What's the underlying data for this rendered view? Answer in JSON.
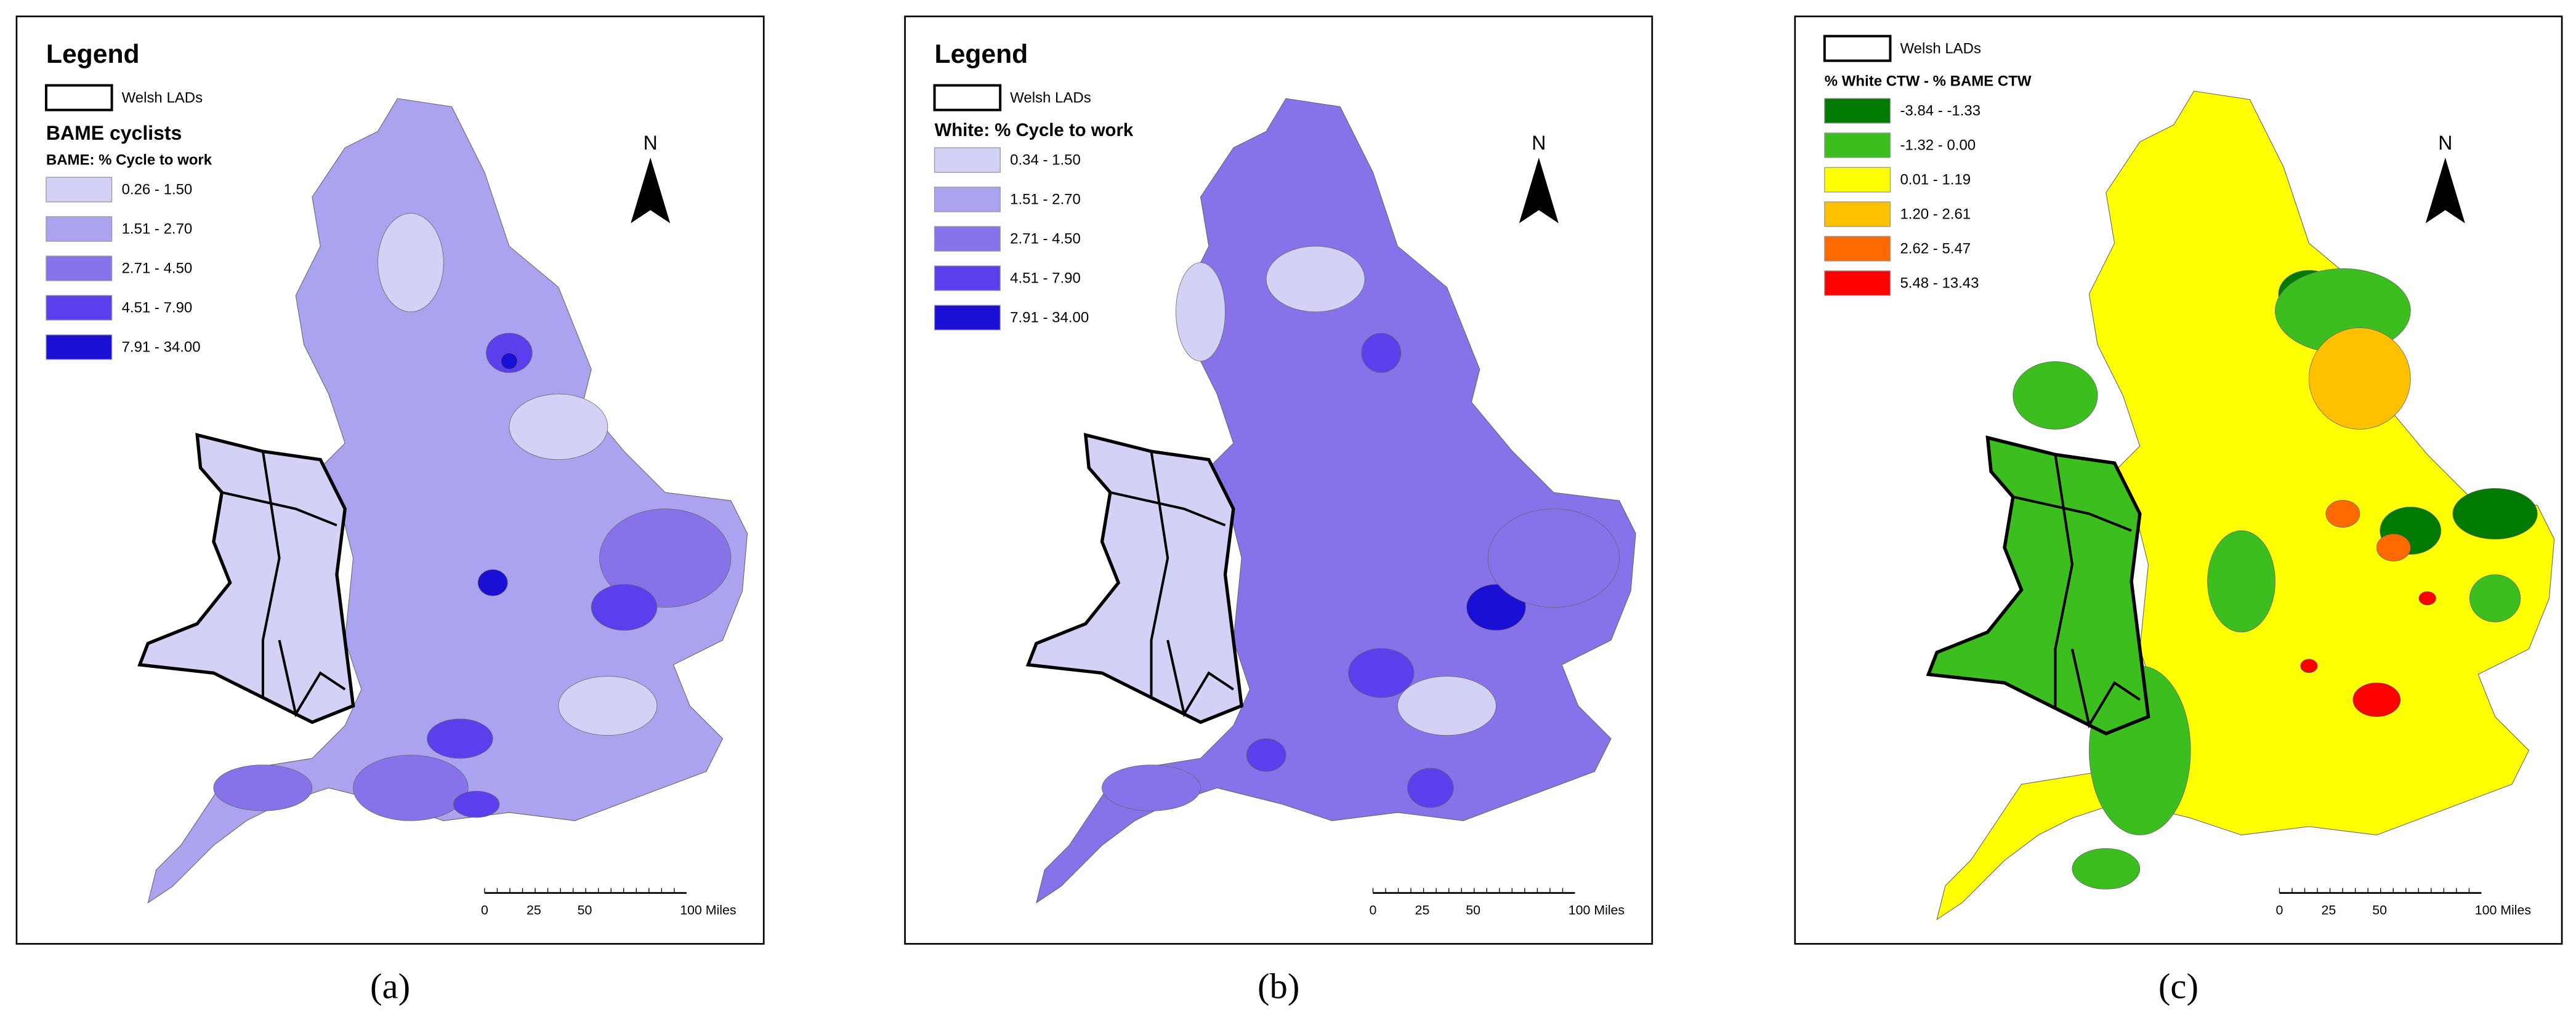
{
  "panels": [
    {
      "legend_title": "Legend",
      "boundary_label": "Welsh LADs",
      "class_title": "BAME cyclists",
      "subtitle": "BAME: % Cycle to work",
      "classes": [
        {
          "label": "0.26 - 1.50",
          "color": "#d3d2f6"
        },
        {
          "label": "1.51 - 2.70",
          "color": "#aba3f0"
        },
        {
          "label": "2.71 - 4.50",
          "color": "#8872ea"
        },
        {
          "label": "4.51 - 7.90",
          "color": "#5b3fec"
        },
        {
          "label": "7.91 - 34.00",
          "color": "#1a0fd4"
        }
      ],
      "north": "N",
      "scale_labels": [
        "0",
        "25",
        "50",
        "100 Miles"
      ],
      "caption": "(a)"
    },
    {
      "legend_title": "Legend",
      "boundary_label": "Welsh LADs",
      "subtitle": "White: % Cycle to work",
      "classes": [
        {
          "label": "0.34 - 1.50",
          "color": "#d3d2f6"
        },
        {
          "label": "1.51 - 2.70",
          "color": "#aba3f0"
        },
        {
          "label": "2.71 - 4.50",
          "color": "#8872ea"
        },
        {
          "label": "4.51 - 7.90",
          "color": "#5b3fec"
        },
        {
          "label": "7.91 - 34.00",
          "color": "#1a0fd4"
        }
      ],
      "north": "N",
      "scale_labels": [
        "0",
        "25",
        "50",
        "100 Miles"
      ],
      "caption": "(b)"
    },
    {
      "boundary_label": "Welsh LADs",
      "subtitle": "% White CTW - % BAME CTW",
      "classes": [
        {
          "label": "-3.84 - -1.33",
          "color": "#007a00"
        },
        {
          "label": "-1.32 - 0.00",
          "color": "#3cbf1e"
        },
        {
          "label": "0.01 - 1.19",
          "color": "#ffff00"
        },
        {
          "label": "1.20 - 2.61",
          "color": "#ffc000"
        },
        {
          "label": "2.62 - 5.47",
          "color": "#ff6a00"
        },
        {
          "label": "5.48 - 13.43",
          "color": "#ff0000"
        }
      ],
      "north": "N",
      "scale_labels": [
        "0",
        "25",
        "50",
        "100 Miles"
      ],
      "caption": "(c)"
    }
  ]
}
